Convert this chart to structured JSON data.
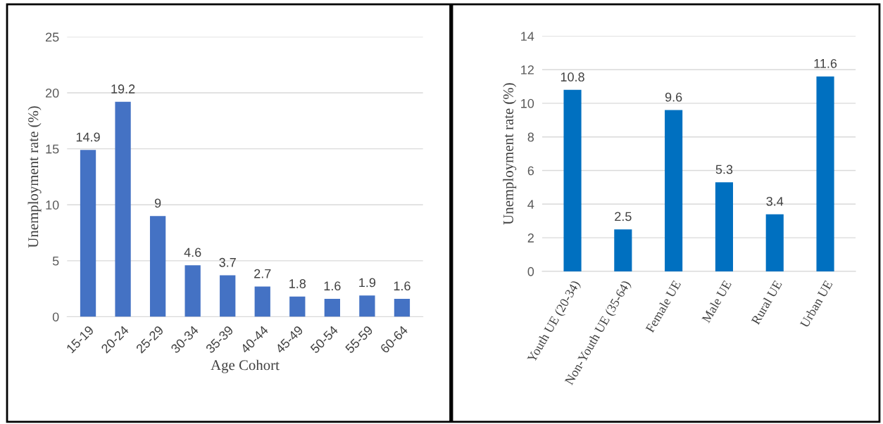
{
  "chart_data": [
    {
      "type": "bar",
      "categories": [
        "15-19",
        "20-24",
        "25-29",
        "30-34",
        "35-39",
        "40-44",
        "45-49",
        "50-54",
        "55-59",
        "60-64"
      ],
      "values": [
        14.9,
        19.2,
        9,
        4.6,
        3.7,
        2.7,
        1.8,
        1.6,
        1.9,
        1.6
      ],
      "color": "#4472c4",
      "ylim": [
        0,
        25
      ],
      "yticks": [
        0,
        5,
        10,
        15,
        20,
        25
      ],
      "grid": "y",
      "data_labels": true,
      "xlabel": "Age Cohort",
      "ylabel": "Unemployment rate (%)"
    },
    {
      "type": "bar",
      "categories": [
        "Youth UE (20-34)",
        "Non-Youth UE (35-64)",
        "Female UE",
        "Male UE",
        "Rural UE",
        "Urban UE"
      ],
      "values": [
        10.8,
        2.5,
        9.6,
        5.3,
        3.4,
        11.6
      ],
      "color": "#0070c0",
      "ylim": [
        0,
        14
      ],
      "yticks": [
        0,
        2,
        4,
        6,
        8,
        10,
        12,
        14
      ],
      "grid": "y",
      "data_labels": true,
      "ylabel": "Unemployment rate (%)"
    }
  ]
}
